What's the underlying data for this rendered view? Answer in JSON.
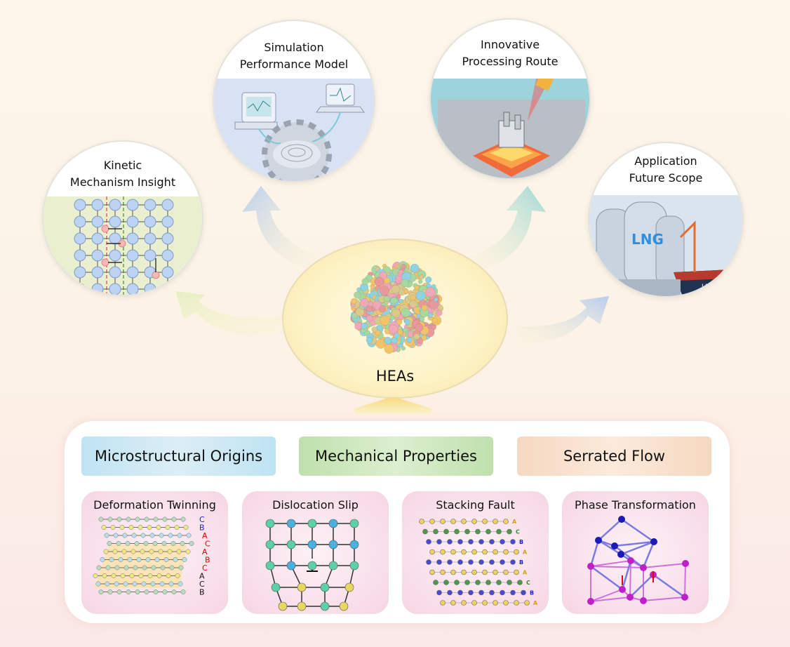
{
  "center": {
    "label": "HEAs"
  },
  "outer_nodes": [
    {
      "title_lines": [
        "Kinetic",
        "Mechanism Insight"
      ]
    },
    {
      "title_lines": [
        "Simulation",
        "Performance Model"
      ]
    },
    {
      "title_lines": [
        "Innovative",
        "Processing Route"
      ]
    },
    {
      "title_lines": [
        "Application",
        "Future Scope"
      ],
      "image_text": [
        "LNG",
        "LNG"
      ]
    }
  ],
  "categories": [
    {
      "label": "Microstructural Origins",
      "color": "#cfe8f3"
    },
    {
      "label": "Mechanical Properties",
      "color": "#cfe8c2"
    },
    {
      "label": "Serrated Flow",
      "color": "#f8e0cc"
    }
  ],
  "mechanisms": [
    {
      "title": "Deformation Twinning",
      "stacking": [
        {
          "l": "C",
          "c": "#1a1aff"
        },
        {
          "l": "B",
          "c": "#1a1aff"
        },
        {
          "l": "A",
          "c": "#e00000"
        },
        {
          "l": "C",
          "c": "#e00000"
        },
        {
          "l": "A",
          "c": "#e00000"
        },
        {
          "l": "B",
          "c": "#e00000"
        },
        {
          "l": "C",
          "c": "#e00000"
        },
        {
          "l": "A",
          "c": "#111111"
        },
        {
          "l": "C",
          "c": "#111111"
        },
        {
          "l": "B",
          "c": "#111111"
        }
      ]
    },
    {
      "title": "Dislocation Slip"
    },
    {
      "title": "Stacking Fault",
      "stacking": [
        {
          "l": "A",
          "c": "#d4a017"
        },
        {
          "l": "C",
          "c": "#2e8b2e"
        },
        {
          "l": "B",
          "c": "#2424c8"
        },
        {
          "l": "A",
          "c": "#d4a017"
        },
        {
          "l": "B",
          "c": "#2424c8"
        },
        {
          "l": "A",
          "c": "#d4a017"
        },
        {
          "l": "C",
          "c": "#2e8b2e"
        },
        {
          "l": "B",
          "c": "#2424c8"
        },
        {
          "l": "A",
          "c": "#d4a017"
        }
      ]
    },
    {
      "title": "Phase Transformation"
    }
  ]
}
